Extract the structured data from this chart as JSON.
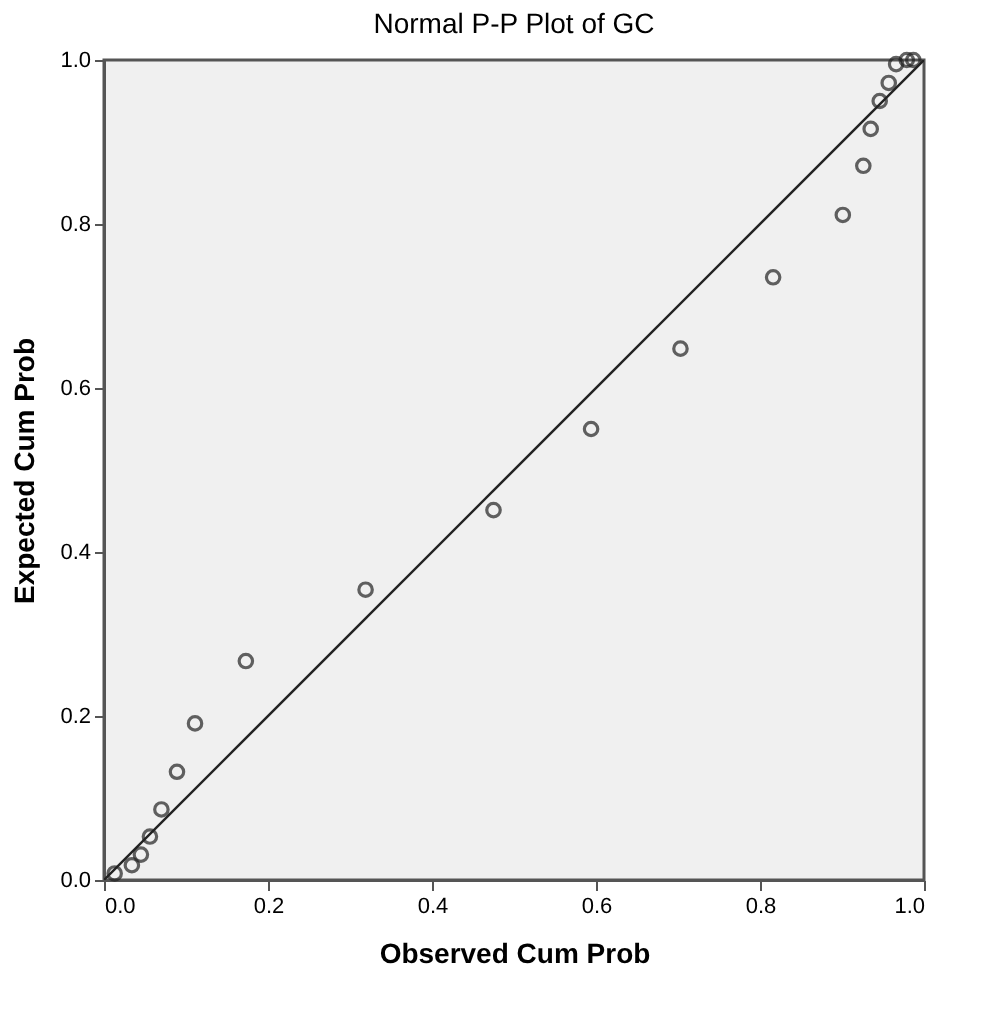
{
  "chart_data": {
    "type": "scatter",
    "title": "Normal P-P Plot of GC",
    "xlabel": "Observed Cum Prob",
    "ylabel": "Expected Cum Prob",
    "xlim": [
      0,
      1
    ],
    "ylim": [
      0,
      1
    ],
    "xticks": [
      {
        "value": 0,
        "label": "0.0"
      },
      0.2,
      0.4,
      0.6,
      0.8,
      {
        "value": 1,
        "label": "1.0"
      }
    ],
    "yticks": [
      {
        "value": 0,
        "label": "0.0"
      },
      0.2,
      0.4,
      0.6,
      0.8,
      {
        "value": 1,
        "label": "1.0"
      }
    ],
    "grid": false,
    "series": [
      {
        "color": "#222222",
        "marker": "circle",
        "x": [
          0.013,
          0.034,
          0.045,
          0.056,
          0.07,
          0.089,
          0.111,
          0.173,
          0.319,
          0.475,
          0.594,
          0.703,
          0.816,
          0.901,
          0.926,
          0.935,
          0.946,
          0.957,
          0.966,
          0.979,
          0.987
        ],
        "values": [
          0.008,
          0.018,
          0.031,
          0.053,
          0.086,
          0.132,
          0.191,
          0.267,
          0.354,
          0.451,
          0.55,
          0.648,
          0.735,
          0.811,
          0.871,
          0.916,
          0.95,
          0.972,
          0.995,
          1.0,
          1.0
        ]
      },
      {
        "type": "line",
        "color": "#222222",
        "line_style": "solid",
        "marker": "none",
        "x": [
          0,
          1
        ],
        "values": [
          0,
          1
        ]
      }
    ]
  }
}
